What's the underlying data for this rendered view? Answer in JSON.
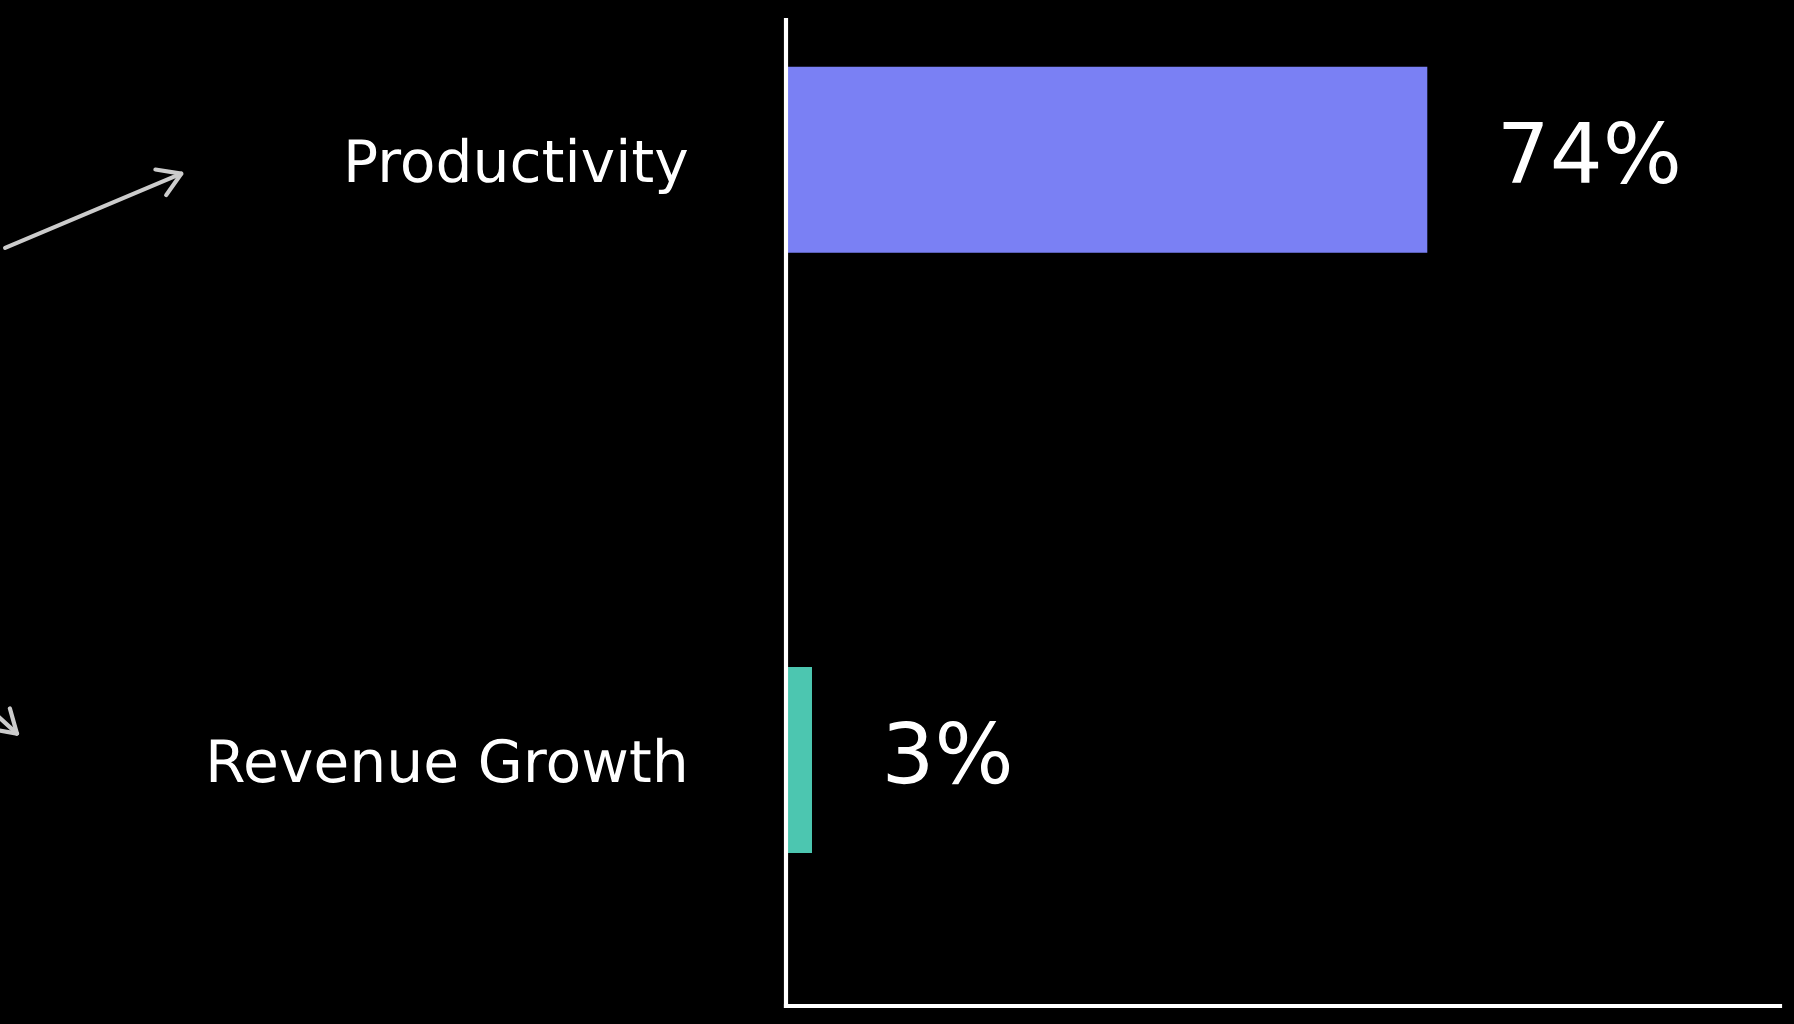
{
  "chart_data": {
    "type": "bar",
    "orientation": "horizontal",
    "categories": [
      "Productivity",
      "Revenue Growth"
    ],
    "values": [
      74,
      3
    ],
    "colors": [
      "#7a80f4",
      "#4cc6b0"
    ],
    "value_labels": [
      "74%",
      "3%"
    ],
    "grid": false,
    "legend": false,
    "tick_labels": "y"
  }
}
